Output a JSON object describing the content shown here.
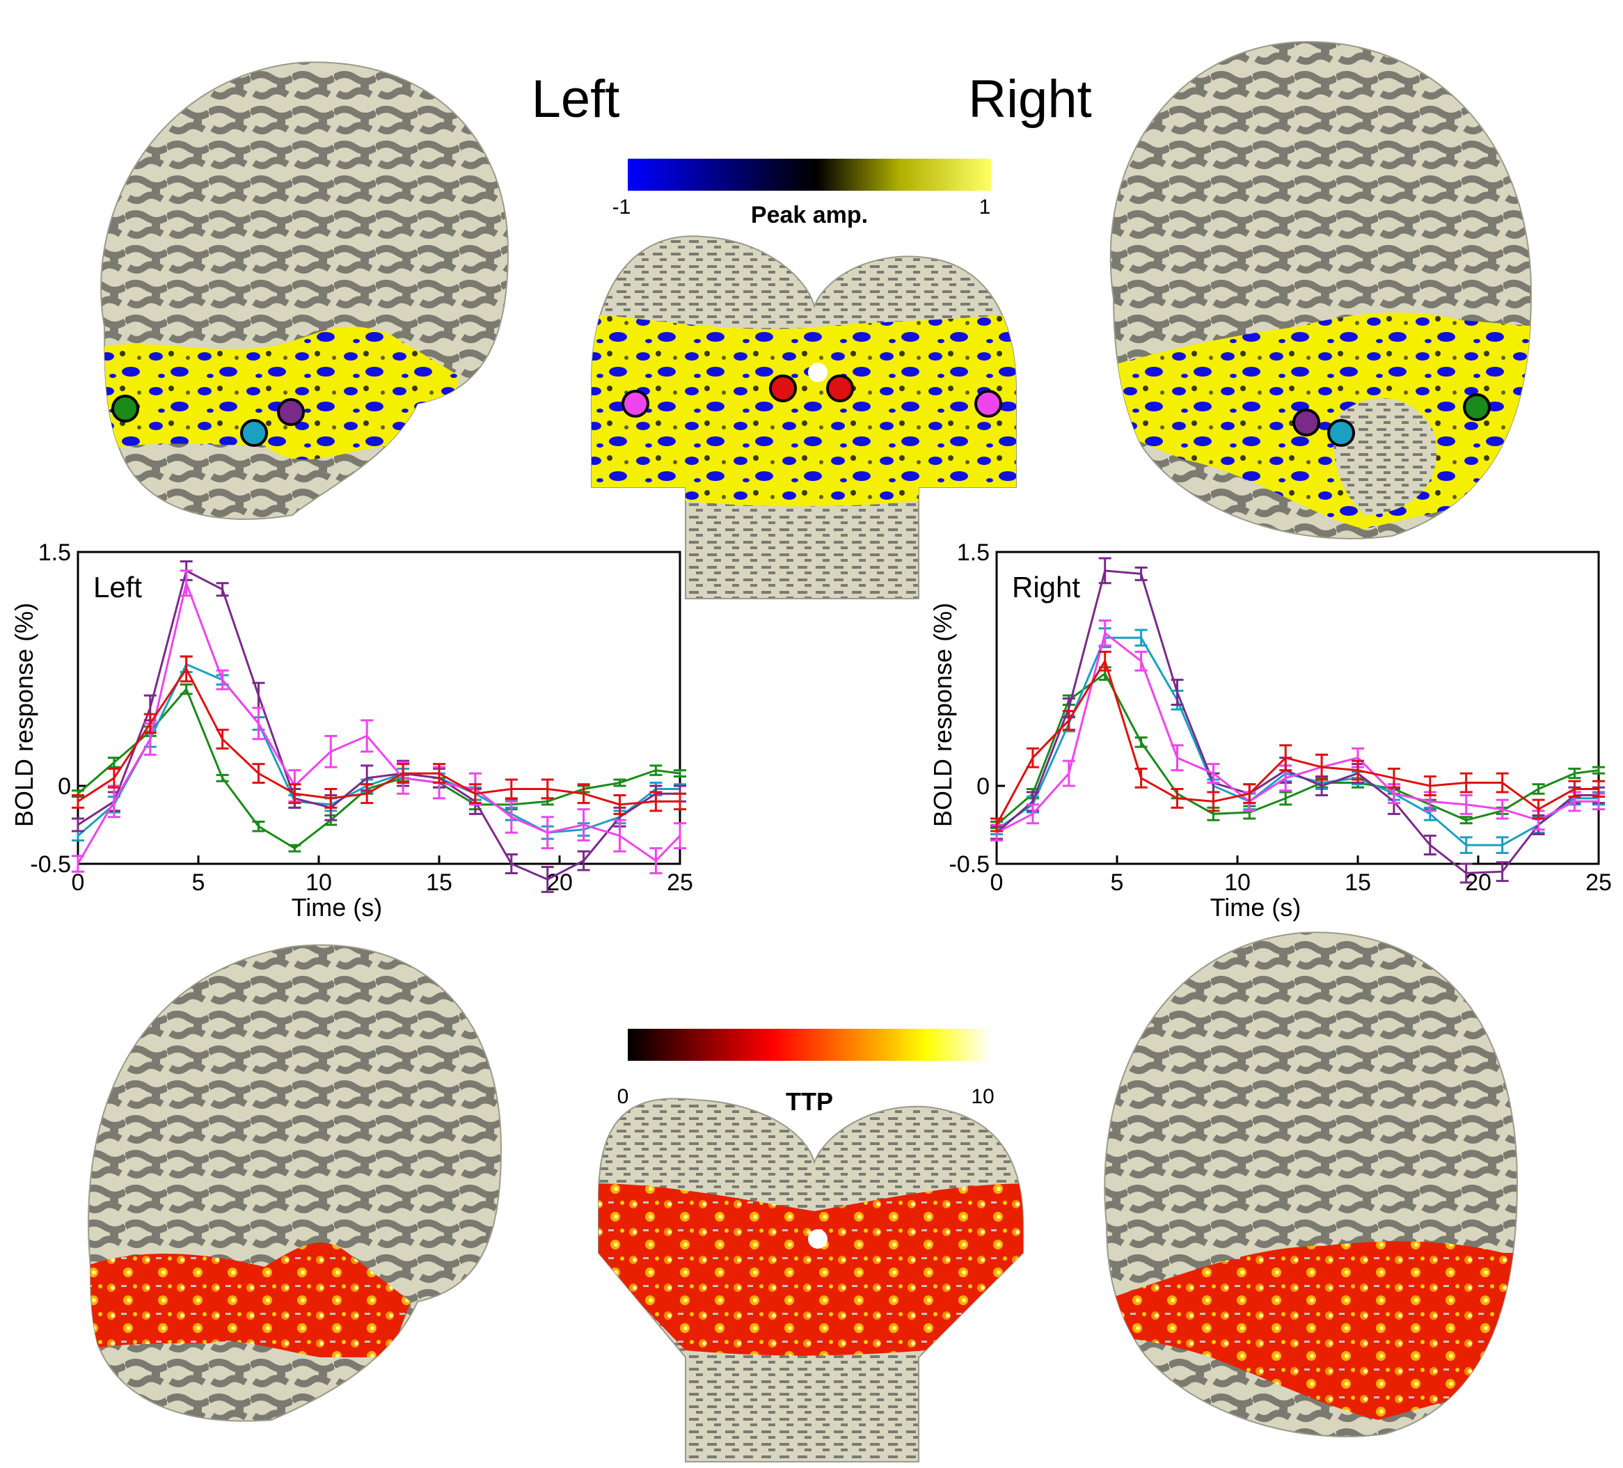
{
  "hemisphere_labels": {
    "left": "Left",
    "right": "Right"
  },
  "peak_colorbar": {
    "title": "Peak amp.",
    "min_label": "-1",
    "max_label": "1",
    "colors": [
      "#0000ff",
      "#000000",
      "#ffff00",
      "#ffff66"
    ]
  },
  "ttp_colorbar": {
    "title": "TTP",
    "min_label": "0",
    "max_label": "10",
    "colors": [
      "#000000",
      "#ff0000",
      "#ffff00",
      "#ffffff"
    ]
  },
  "surface_colors": {
    "gyrus": "#d8d6bf",
    "sulcus": "#7a7a70",
    "positive": "#ffff00",
    "negative": "#1010e0",
    "ttp_low": "#e82000",
    "ttp_mid": "#ff9000",
    "ttp_high": "#ffffa0"
  },
  "roi_markers": {
    "left_hemisphere": [
      "green",
      "cyan",
      "purple"
    ],
    "center_view": [
      "magenta",
      "red",
      "red",
      "magenta"
    ],
    "right_hemisphere": [
      "purple",
      "cyan",
      "green"
    ]
  },
  "series_colors": {
    "green": "#1a8a1a",
    "cyan": "#1aa0c0",
    "purple": "#7a2a8a",
    "magenta": "#ee44ee",
    "red": "#dd1111"
  },
  "chart_data": [
    {
      "type": "line",
      "title": "Left",
      "xlabel": "Time (s)",
      "ylabel": "BOLD response (%)",
      "xlim": [
        0,
        25
      ],
      "ylim": [
        -0.5,
        1.5
      ],
      "xticks": [
        "0",
        "5",
        "10",
        "15",
        "20",
        "25"
      ],
      "yticks": [
        "-0.5",
        "0",
        "1.5"
      ],
      "x": [
        0,
        1.5,
        3,
        4.5,
        6,
        7.5,
        9,
        10.5,
        12,
        13.5,
        15,
        16.5,
        18,
        19.5,
        21,
        22.5,
        24,
        25
      ],
      "series": [
        {
          "color": "green",
          "values": [
            -0.05,
            0.15,
            0.35,
            0.62,
            0.05,
            -0.26,
            -0.4,
            -0.22,
            -0.02,
            0.05,
            0.02,
            -0.12,
            -0.12,
            -0.1,
            -0.02,
            0.02,
            0.1,
            0.08
          ],
          "errors": [
            0.02,
            0.03,
            0.03,
            0.03,
            0.02,
            0.03,
            0.02,
            0.03,
            0.03,
            0.02,
            0.03,
            0.03,
            0.03,
            0.02,
            0.02,
            0.02,
            0.03,
            0.02
          ]
        },
        {
          "color": "cyan",
          "values": [
            -0.32,
            -0.12,
            0.3,
            0.78,
            0.68,
            0.4,
            -0.1,
            -0.12,
            0.0,
            0.08,
            0.05,
            -0.05,
            -0.18,
            -0.3,
            -0.28,
            -0.2,
            -0.02,
            -0.02
          ],
          "errors": [
            0.03,
            0.05,
            0.05,
            0.05,
            0.03,
            0.04,
            0.04,
            0.04,
            0.04,
            0.03,
            0.03,
            0.04,
            0.04,
            0.04,
            0.04,
            0.04,
            0.04,
            0.03
          ]
        },
        {
          "color": "purple",
          "values": [
            -0.25,
            -0.1,
            0.5,
            1.38,
            1.26,
            0.58,
            -0.08,
            -0.14,
            0.05,
            0.08,
            0.05,
            -0.1,
            -0.5,
            -0.6,
            -0.48,
            -0.2,
            -0.05,
            -0.05
          ],
          "errors": [
            0.04,
            0.06,
            0.08,
            0.06,
            0.04,
            0.08,
            0.06,
            0.08,
            0.08,
            0.08,
            0.06,
            0.08,
            0.06,
            0.08,
            0.06,
            0.06,
            0.05,
            0.05
          ]
        },
        {
          "color": "magenta",
          "values": [
            -0.5,
            -0.1,
            0.3,
            1.3,
            0.68,
            0.4,
            0.0,
            0.22,
            0.32,
            0.05,
            0.02,
            -0.02,
            -0.2,
            -0.3,
            -0.25,
            -0.32,
            -0.48,
            -0.32
          ],
          "errors": [
            0.05,
            0.1,
            0.1,
            0.08,
            0.06,
            0.1,
            0.1,
            0.1,
            0.1,
            0.1,
            0.1,
            0.1,
            0.1,
            0.1,
            0.1,
            0.1,
            0.08,
            0.08
          ]
        },
        {
          "color": "red",
          "values": [
            -0.1,
            0.05,
            0.4,
            0.75,
            0.3,
            0.08,
            -0.05,
            -0.08,
            -0.05,
            0.08,
            0.08,
            -0.05,
            -0.02,
            -0.02,
            -0.05,
            -0.12,
            -0.1,
            -0.1
          ],
          "errors": [
            0.04,
            0.06,
            0.06,
            0.08,
            0.06,
            0.06,
            0.06,
            0.06,
            0.06,
            0.06,
            0.06,
            0.06,
            0.06,
            0.06,
            0.06,
            0.06,
            0.06,
            0.05
          ]
        }
      ]
    },
    {
      "type": "line",
      "title": "Right",
      "xlabel": "Time (s)",
      "ylabel": "BOLD response (%)",
      "xlim": [
        0,
        25
      ],
      "ylim": [
        -0.5,
        1.5
      ],
      "xticks": [
        "0",
        "5",
        "10",
        "15",
        "20",
        "25"
      ],
      "yticks": [
        "-0.5",
        "0",
        "1.5"
      ],
      "x": [
        0,
        1.5,
        3,
        4.5,
        6,
        7.5,
        9,
        10.5,
        12,
        13.5,
        15,
        16.5,
        18,
        19.5,
        21,
        22.5,
        24,
        25
      ],
      "series": [
        {
          "color": "green",
          "values": [
            -0.25,
            -0.05,
            0.55,
            0.72,
            0.28,
            -0.05,
            -0.18,
            -0.17,
            -0.08,
            0.02,
            0.02,
            -0.02,
            -0.12,
            -0.22,
            -0.16,
            -0.02,
            0.08,
            0.1
          ],
          "errors": [
            0.02,
            0.03,
            0.03,
            0.04,
            0.03,
            0.03,
            0.04,
            0.04,
            0.04,
            0.03,
            0.03,
            0.03,
            0.03,
            0.02,
            0.02,
            0.03,
            0.03,
            0.02
          ]
        },
        {
          "color": "cyan",
          "values": [
            -0.28,
            -0.12,
            0.4,
            0.95,
            0.95,
            0.55,
            0.0,
            -0.1,
            0.08,
            0.02,
            0.05,
            -0.05,
            -0.18,
            -0.38,
            -0.38,
            -0.25,
            -0.08,
            -0.08
          ],
          "errors": [
            0.03,
            0.05,
            0.05,
            0.06,
            0.05,
            0.06,
            0.04,
            0.05,
            0.05,
            0.04,
            0.04,
            0.04,
            0.04,
            0.05,
            0.05,
            0.05,
            0.04,
            0.04
          ]
        },
        {
          "color": "purple",
          "values": [
            -0.3,
            -0.1,
            0.5,
            1.38,
            1.36,
            0.6,
            0.02,
            -0.05,
            0.1,
            0.0,
            0.08,
            -0.1,
            -0.38,
            -0.56,
            -0.55,
            -0.25,
            -0.06,
            -0.06
          ],
          "errors": [
            0.04,
            0.06,
            0.06,
            0.08,
            0.04,
            0.08,
            0.06,
            0.06,
            0.08,
            0.06,
            0.06,
            0.08,
            0.06,
            0.06,
            0.06,
            0.06,
            0.05,
            0.05
          ]
        },
        {
          "color": "magenta",
          "values": [
            -0.3,
            -0.18,
            0.08,
            0.98,
            0.8,
            0.18,
            0.08,
            -0.1,
            0.05,
            0.12,
            0.18,
            -0.05,
            -0.1,
            -0.12,
            -0.15,
            -0.22,
            -0.1,
            -0.1
          ],
          "errors": [
            0.05,
            0.06,
            0.08,
            0.08,
            0.06,
            0.08,
            0.06,
            0.06,
            0.08,
            0.08,
            0.06,
            0.06,
            0.06,
            0.06,
            0.06,
            0.06,
            0.06,
            0.05
          ]
        },
        {
          "color": "red",
          "values": [
            -0.25,
            0.18,
            0.42,
            0.8,
            0.05,
            -0.08,
            -0.1,
            -0.05,
            0.18,
            0.12,
            0.1,
            0.05,
            0.0,
            0.02,
            0.02,
            -0.15,
            -0.02,
            -0.02
          ],
          "errors": [
            0.04,
            0.06,
            0.06,
            0.06,
            0.06,
            0.06,
            0.06,
            0.06,
            0.08,
            0.08,
            0.06,
            0.06,
            0.06,
            0.06,
            0.06,
            0.06,
            0.05,
            0.05
          ]
        }
      ]
    }
  ]
}
